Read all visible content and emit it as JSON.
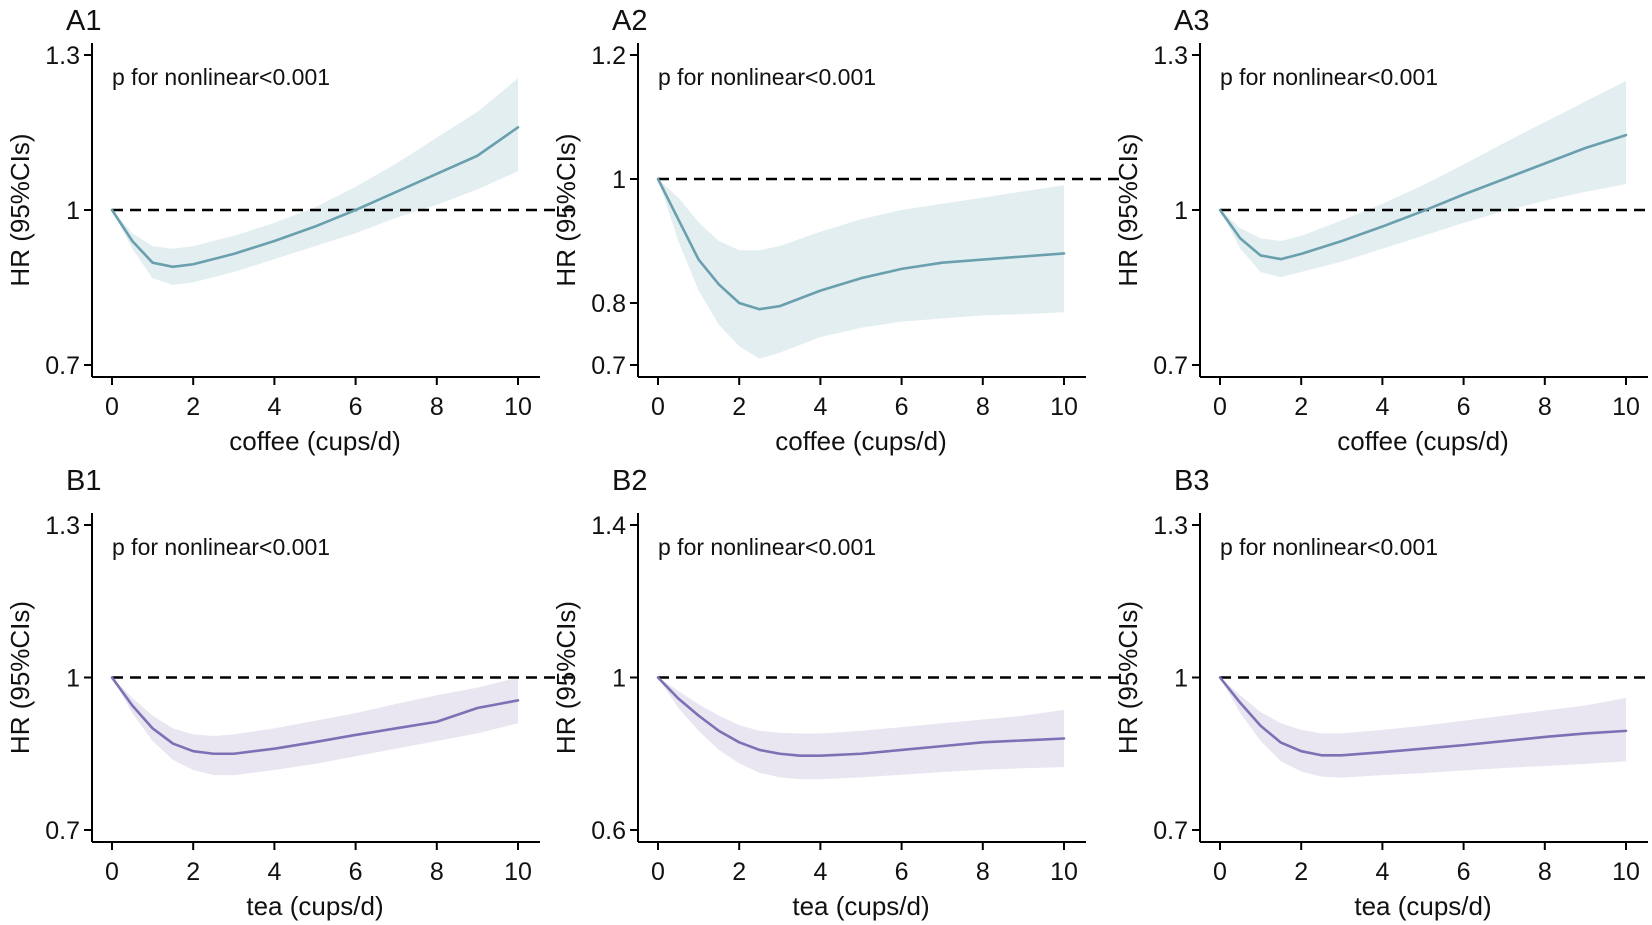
{
  "colors": {
    "coffee_line": "#6a9fae",
    "coffee_band": "#e3eef1",
    "tea_line": "#7e70b4",
    "tea_band": "#e9e6f1",
    "reference": "#000000",
    "axis": "#000000"
  },
  "chart_data": [
    {
      "panel": "A1",
      "type": "line",
      "xlabel": "coffee (cups/d)",
      "ylabel": "HR (95%CIs)",
      "annotation": "p for nonlinear<0.001",
      "xlim": [
        0,
        10
      ],
      "ylim": [
        0.7,
        1.3
      ],
      "x_ticks": [
        0,
        2,
        4,
        6,
        8,
        10
      ],
      "x_tick_labels": [
        "0",
        "2",
        "4",
        "6",
        "8",
        "10"
      ],
      "y_ticks": [
        0.7,
        1.0,
        1.3
      ],
      "y_tick_labels": [
        "0.7",
        "1",
        "1.3"
      ],
      "reference_line": 1.0,
      "series": [
        {
          "name": "HR",
          "color_key": "coffee",
          "x": [
            0,
            0.5,
            1,
            1.5,
            2,
            3,
            4,
            5,
            6,
            7,
            8,
            9,
            10
          ],
          "y": [
            1.0,
            0.94,
            0.898,
            0.89,
            0.895,
            0.915,
            0.94,
            0.968,
            1.0,
            1.035,
            1.07,
            1.105,
            1.16
          ],
          "lower": [
            1.0,
            0.925,
            0.868,
            0.855,
            0.86,
            0.88,
            0.905,
            0.93,
            0.955,
            0.985,
            1.01,
            1.04,
            1.075
          ],
          "upper": [
            1.0,
            0.955,
            0.93,
            0.925,
            0.93,
            0.95,
            0.975,
            1.005,
            1.045,
            1.09,
            1.14,
            1.19,
            1.255
          ]
        }
      ]
    },
    {
      "panel": "A2",
      "type": "line",
      "xlabel": "coffee (cups/d)",
      "ylabel": "HR (95%CIs)",
      "annotation": "p for nonlinear<0.001",
      "xlim": [
        0,
        10
      ],
      "ylim": [
        0.7,
        1.2
      ],
      "x_ticks": [
        0,
        2,
        4,
        6,
        8,
        10
      ],
      "x_tick_labels": [
        "0",
        "2",
        "4",
        "6",
        "8",
        "10"
      ],
      "y_ticks": [
        0.7,
        0.8,
        1.0,
        1.2
      ],
      "y_tick_labels": [
        "0.7",
        "0.8",
        "1",
        "1.2"
      ],
      "reference_line": 1.0,
      "series": [
        {
          "name": "HR",
          "color_key": "coffee",
          "x": [
            0,
            0.5,
            1,
            1.5,
            2,
            2.5,
            3,
            4,
            5,
            6,
            7,
            8,
            9,
            10
          ],
          "y": [
            1.0,
            0.935,
            0.87,
            0.83,
            0.8,
            0.79,
            0.795,
            0.82,
            0.84,
            0.855,
            0.865,
            0.87,
            0.875,
            0.88
          ],
          "lower": [
            1.0,
            0.9,
            0.82,
            0.765,
            0.73,
            0.71,
            0.72,
            0.745,
            0.76,
            0.77,
            0.775,
            0.78,
            0.782,
            0.785
          ],
          "upper": [
            1.0,
            0.97,
            0.93,
            0.9,
            0.885,
            0.885,
            0.892,
            0.915,
            0.935,
            0.95,
            0.96,
            0.97,
            0.98,
            0.99
          ]
        }
      ]
    },
    {
      "panel": "A3",
      "type": "line",
      "xlabel": "coffee (cups/d)",
      "ylabel": "HR (95%CIs)",
      "annotation": "p for nonlinear<0.001",
      "xlim": [
        0,
        10
      ],
      "ylim": [
        0.7,
        1.3
      ],
      "x_ticks": [
        0,
        2,
        4,
        6,
        8,
        10
      ],
      "x_tick_labels": [
        "0",
        "2",
        "4",
        "6",
        "8",
        "10"
      ],
      "y_ticks": [
        0.7,
        1.0,
        1.3
      ],
      "y_tick_labels": [
        "0.7",
        "1",
        "1.3"
      ],
      "reference_line": 1.0,
      "series": [
        {
          "name": "HR",
          "color_key": "coffee",
          "x": [
            0,
            0.5,
            1,
            1.5,
            2,
            3,
            4,
            5,
            6,
            7,
            8,
            9,
            10
          ],
          "y": [
            1.0,
            0.945,
            0.912,
            0.905,
            0.915,
            0.94,
            0.968,
            0.998,
            1.03,
            1.06,
            1.09,
            1.12,
            1.145
          ],
          "lower": [
            1.0,
            0.925,
            0.88,
            0.87,
            0.88,
            0.9,
            0.925,
            0.95,
            0.975,
            0.998,
            1.018,
            1.035,
            1.05
          ],
          "upper": [
            1.0,
            0.965,
            0.945,
            0.94,
            0.95,
            0.98,
            1.012,
            1.048,
            1.088,
            1.13,
            1.17,
            1.21,
            1.25
          ]
        }
      ]
    },
    {
      "panel": "B1",
      "type": "line",
      "xlabel": "tea (cups/d)",
      "ylabel": "HR (95%CIs)",
      "annotation": "p for nonlinear<0.001",
      "xlim": [
        0,
        10
      ],
      "ylim": [
        0.7,
        1.3
      ],
      "x_ticks": [
        0,
        2,
        4,
        6,
        8,
        10
      ],
      "x_tick_labels": [
        "0",
        "2",
        "4",
        "6",
        "8",
        "10"
      ],
      "y_ticks": [
        0.7,
        1.0,
        1.3
      ],
      "y_tick_labels": [
        "0.7",
        "1",
        "1.3"
      ],
      "reference_line": 1.0,
      "series": [
        {
          "name": "HR",
          "color_key": "tea",
          "x": [
            0,
            0.5,
            1,
            1.5,
            2,
            2.5,
            3,
            4,
            5,
            6,
            7,
            8,
            9,
            10
          ],
          "y": [
            1.0,
            0.945,
            0.9,
            0.87,
            0.855,
            0.85,
            0.85,
            0.86,
            0.873,
            0.887,
            0.9,
            0.913,
            0.94,
            0.955
          ],
          "lower": [
            1.0,
            0.93,
            0.875,
            0.838,
            0.818,
            0.808,
            0.808,
            0.818,
            0.83,
            0.845,
            0.86,
            0.875,
            0.89,
            0.91
          ],
          "upper": [
            1.0,
            0.96,
            0.925,
            0.9,
            0.888,
            0.885,
            0.888,
            0.9,
            0.915,
            0.93,
            0.948,
            0.965,
            0.98,
            1.0
          ]
        }
      ]
    },
    {
      "panel": "B2",
      "type": "line",
      "xlabel": "tea (cups/d)",
      "ylabel": "HR (95%CIs)",
      "annotation": "p for nonlinear<0.001",
      "xlim": [
        0,
        10
      ],
      "ylim": [
        0.6,
        1.4
      ],
      "x_ticks": [
        0,
        2,
        4,
        6,
        8,
        10
      ],
      "x_tick_labels": [
        "0",
        "2",
        "4",
        "6",
        "8",
        "10"
      ],
      "y_ticks": [
        0.6,
        1.0,
        1.4
      ],
      "y_tick_labels": [
        "0.6",
        "1",
        "1.4"
      ],
      "reference_line": 1.0,
      "series": [
        {
          "name": "HR",
          "color_key": "tea",
          "x": [
            0,
            0.5,
            1,
            1.5,
            2,
            2.5,
            3,
            3.5,
            4,
            5,
            6,
            7,
            8,
            9,
            10
          ],
          "y": [
            1.0,
            0.945,
            0.9,
            0.86,
            0.83,
            0.81,
            0.8,
            0.795,
            0.795,
            0.8,
            0.81,
            0.82,
            0.83,
            0.835,
            0.84
          ],
          "lower": [
            1.0,
            0.92,
            0.86,
            0.81,
            0.775,
            0.75,
            0.738,
            0.733,
            0.733,
            0.738,
            0.745,
            0.752,
            0.758,
            0.762,
            0.765
          ],
          "upper": [
            1.0,
            0.965,
            0.93,
            0.9,
            0.875,
            0.86,
            0.855,
            0.853,
            0.853,
            0.86,
            0.87,
            0.88,
            0.89,
            0.9,
            0.915
          ]
        }
      ]
    },
    {
      "panel": "B3",
      "type": "line",
      "xlabel": "tea (cups/d)",
      "ylabel": "HR (95%CIs)",
      "annotation": "p for nonlinear<0.001",
      "xlim": [
        0,
        10
      ],
      "ylim": [
        0.7,
        1.3
      ],
      "x_ticks": [
        0,
        2,
        4,
        6,
        8,
        10
      ],
      "x_tick_labels": [
        "0",
        "2",
        "4",
        "6",
        "8",
        "10"
      ],
      "y_ticks": [
        0.7,
        1.0,
        1.3
      ],
      "y_tick_labels": [
        "0.7",
        "1",
        "1.3"
      ],
      "reference_line": 1.0,
      "series": [
        {
          "name": "HR",
          "color_key": "tea",
          "x": [
            0,
            0.5,
            1,
            1.5,
            2,
            2.5,
            3,
            4,
            5,
            6,
            7,
            8,
            9,
            10
          ],
          "y": [
            1.0,
            0.95,
            0.905,
            0.872,
            0.855,
            0.847,
            0.847,
            0.853,
            0.86,
            0.867,
            0.875,
            0.883,
            0.89,
            0.895
          ],
          "lower": [
            1.0,
            0.93,
            0.875,
            0.835,
            0.815,
            0.805,
            0.803,
            0.808,
            0.812,
            0.817,
            0.822,
            0.826,
            0.83,
            0.835
          ],
          "upper": [
            1.0,
            0.965,
            0.932,
            0.91,
            0.897,
            0.89,
            0.89,
            0.897,
            0.905,
            0.915,
            0.925,
            0.935,
            0.945,
            0.96
          ]
        }
      ]
    }
  ]
}
